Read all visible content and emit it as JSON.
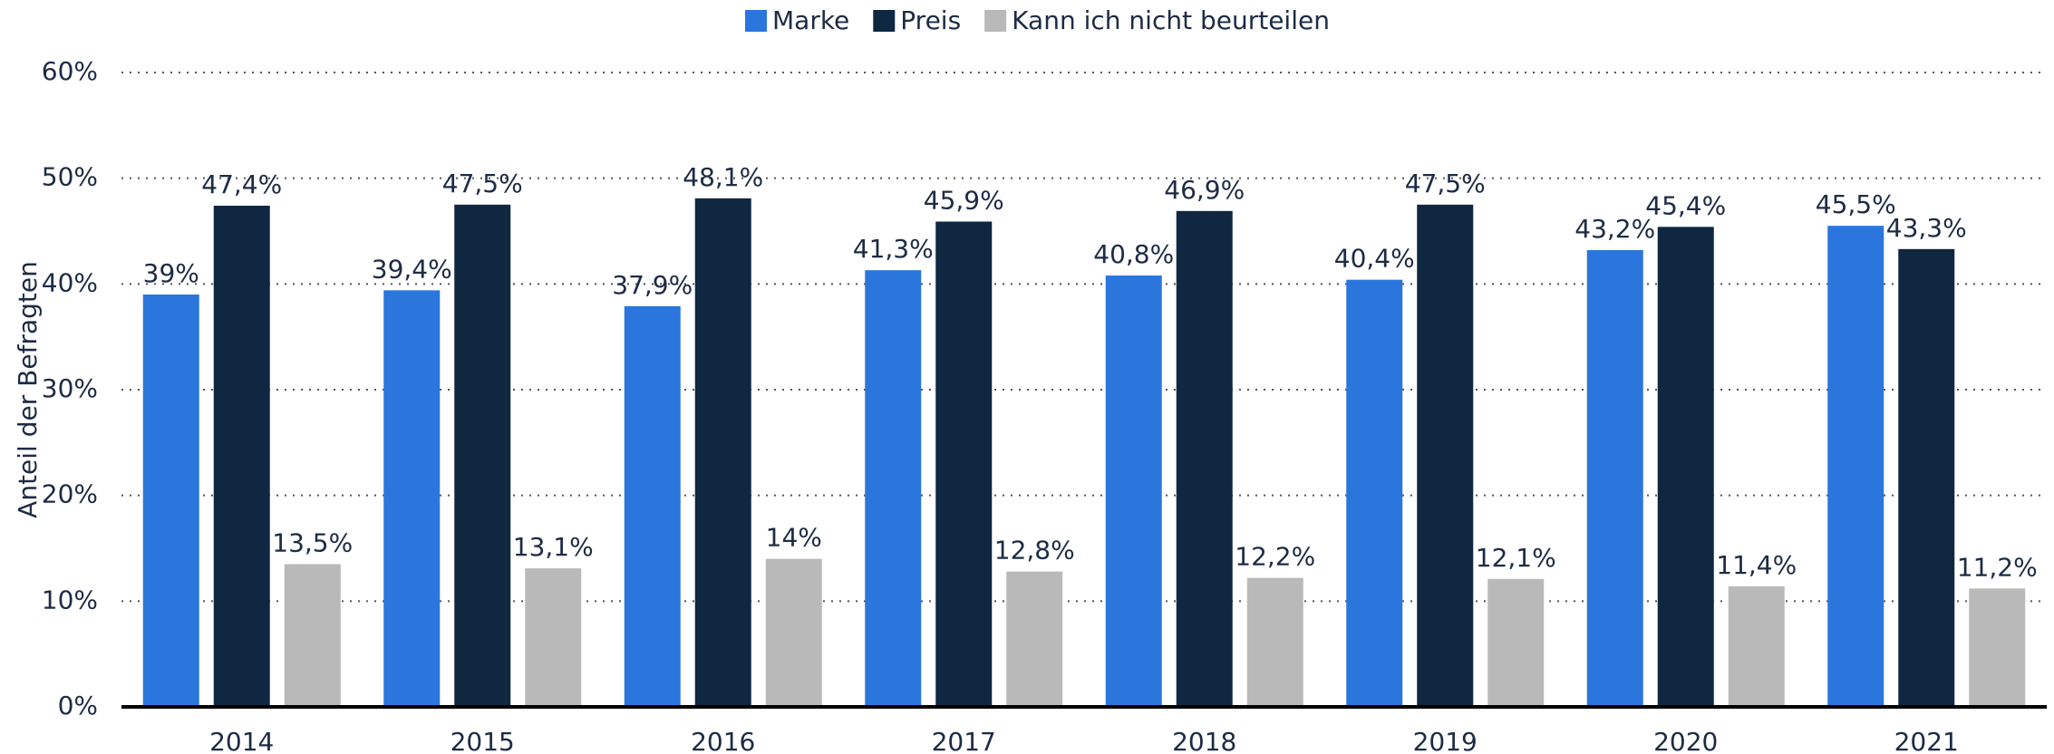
{
  "chart_data": {
    "type": "bar",
    "y_label": "Anteil der Befragten",
    "categories": [
      "2014",
      "2015",
      "2016",
      "2017",
      "2018",
      "2019",
      "2020",
      "2021"
    ],
    "series": [
      {
        "name": "Marke",
        "color": "#2a76dd",
        "values": [
          39,
          39.4,
          37.9,
          41.3,
          40.8,
          40.4,
          43.2,
          45.5
        ],
        "value_labels": [
          "39%",
          "39,4%",
          "37,9%",
          "41,3%",
          "40,8%",
          "40,4%",
          "43,2%",
          "45,5%"
        ]
      },
      {
        "name": "Preis",
        "color": "#0f2740",
        "values": [
          47.4,
          47.5,
          48.1,
          45.9,
          46.9,
          47.5,
          45.4,
          43.3
        ],
        "value_labels": [
          "47,4%",
          "47,5%",
          "48,1%",
          "45,9%",
          "46,9%",
          "47,5%",
          "45,4%",
          "43,3%"
        ]
      },
      {
        "name": "Kann ich nicht beurteilen",
        "color": "#b9b9b9",
        "values": [
          13.5,
          13.1,
          14,
          12.8,
          12.2,
          12.1,
          11.4,
          11.2
        ],
        "value_labels": [
          "13,5%",
          "13,1%",
          "14%",
          "12,8%",
          "12,2%",
          "12,1%",
          "11,4%",
          "11,2%"
        ]
      }
    ],
    "ylim": [
      0,
      60
    ],
    "yticks": [
      {
        "value": 0,
        "label": "0%"
      },
      {
        "value": 10,
        "label": "10%"
      },
      {
        "value": 20,
        "label": "20%"
      },
      {
        "value": 30,
        "label": "30%"
      },
      {
        "value": 40,
        "label": "40%"
      },
      {
        "value": 50,
        "label": "50%"
      },
      {
        "value": 60,
        "label": "60%"
      }
    ],
    "grid": true,
    "legend": "top"
  }
}
